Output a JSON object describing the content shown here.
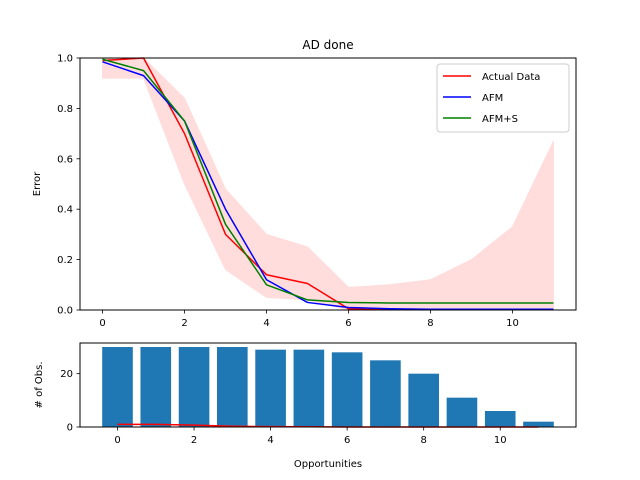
{
  "chart_data": [
    {
      "type": "line",
      "title": "AD done",
      "xlabel": "",
      "ylabel": "Error",
      "xlim": [
        -0.55,
        11.55
      ],
      "ylim": [
        0,
        1.0
      ],
      "xticks": [
        0,
        2,
        4,
        6,
        8,
        10
      ],
      "yticks": [
        0.0,
        0.2,
        0.4,
        0.6,
        0.8,
        1.0
      ],
      "xtick_labels": [
        "0",
        "2",
        "4",
        "6",
        "8",
        "10"
      ],
      "ytick_labels": [
        "0.0",
        "0.2",
        "0.4",
        "0.6",
        "0.8",
        "1.0"
      ],
      "legend_position": "top-right",
      "x": [
        0,
        1,
        2,
        3,
        4,
        5,
        6,
        7,
        8,
        9,
        10,
        11
      ],
      "band": {
        "color": "#ffdddd",
        "lower": [
          0.92,
          0.92,
          0.5,
          0.16,
          0.05,
          0.04,
          0.0,
          0.0,
          0.0,
          0.0,
          0.0,
          0.0
        ],
        "upper": [
          1.0,
          1.0,
          0.84,
          0.48,
          0.3,
          0.25,
          0.09,
          0.1,
          0.12,
          0.2,
          0.33,
          0.67
        ]
      },
      "series": [
        {
          "name": "Actual Data",
          "color": "#ff0000",
          "values": [
            0.99,
            1.03,
            0.7,
            0.3,
            0.14,
            0.105,
            0.005,
            0.002,
            0.002,
            0.002,
            0.002,
            0.002
          ]
        },
        {
          "name": "AFM",
          "color": "#0000ff",
          "values": [
            0.985,
            0.93,
            0.75,
            0.4,
            0.12,
            0.03,
            0.01,
            0.005,
            0.003,
            0.003,
            0.003,
            0.003
          ]
        },
        {
          "name": "AFM+S",
          "color": "#008000",
          "values": [
            0.995,
            0.95,
            0.75,
            0.34,
            0.1,
            0.04,
            0.03,
            0.028,
            0.028,
            0.028,
            0.028,
            0.028
          ]
        }
      ]
    },
    {
      "type": "bar",
      "title": "",
      "xlabel": "Opportunities",
      "ylabel": "# of Obs.",
      "xlim": [
        -0.98,
        11.98
      ],
      "ylim": [
        0,
        31.5
      ],
      "xticks": [
        0,
        2,
        4,
        6,
        8,
        10
      ],
      "yticks": [
        0,
        20
      ],
      "xtick_labels": [
        "0",
        "2",
        "4",
        "6",
        "8",
        "10"
      ],
      "ytick_labels": [
        "0",
        "20"
      ],
      "bar_color": "#1f77b4",
      "categories": [
        0,
        1,
        2,
        3,
        4,
        5,
        6,
        7,
        8,
        9,
        10,
        11
      ],
      "values": [
        30,
        30,
        30,
        30,
        29,
        29,
        28,
        25,
        20,
        11,
        6,
        2
      ],
      "overlay_line": {
        "color": "#ff0000",
        "values": [
          1.0,
          1.0,
          0.7,
          0.3,
          0.14,
          0.1,
          0.0,
          0.0,
          0.0,
          0.0,
          0.0,
          0.0
        ]
      }
    }
  ]
}
